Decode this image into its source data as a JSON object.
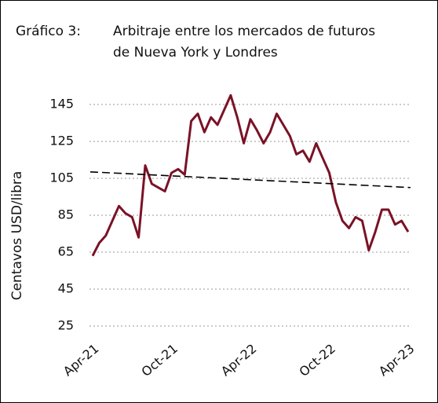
{
  "chart_data": {
    "type": "line",
    "label": "Gráfico 3:",
    "title": [
      "Arbitraje entre los mercados de futuros",
      "de Nueva York y Londres"
    ],
    "y_label": "Centavos USD/libra",
    "categories": [
      "Apr-21",
      null,
      null,
      null,
      null,
      null,
      null,
      null,
      null,
      null,
      null,
      null,
      "Oct-21",
      null,
      null,
      null,
      null,
      null,
      null,
      null,
      null,
      null,
      null,
      null,
      "Apr-22",
      null,
      null,
      null,
      null,
      null,
      null,
      null,
      null,
      null,
      null,
      null,
      "Oct-22",
      null,
      null,
      null,
      null,
      null,
      null,
      null,
      null,
      null,
      null,
      null,
      "Apr-23"
    ],
    "series": [
      {
        "color": "#7a1226",
        "values": [
          63,
          70,
          74,
          82,
          90,
          86,
          84,
          73,
          112,
          102,
          100,
          98,
          108,
          110,
          107,
          136,
          140,
          130,
          138,
          134,
          142,
          150,
          138,
          124,
          137,
          131,
          124,
          130,
          140,
          134,
          128,
          118,
          120,
          114,
          124,
          116,
          108,
          92,
          82,
          78,
          84,
          82,
          66,
          76,
          88,
          88,
          80,
          82,
          76
        ]
      }
    ],
    "trend": {
      "color": "#000000",
      "values": [
        108.5,
        100
      ],
      "dashed": true
    },
    "ylim": [
      25,
      145
    ],
    "yticks": [
      25,
      45,
      65,
      85,
      105,
      125,
      145
    ],
    "grid": true
  }
}
